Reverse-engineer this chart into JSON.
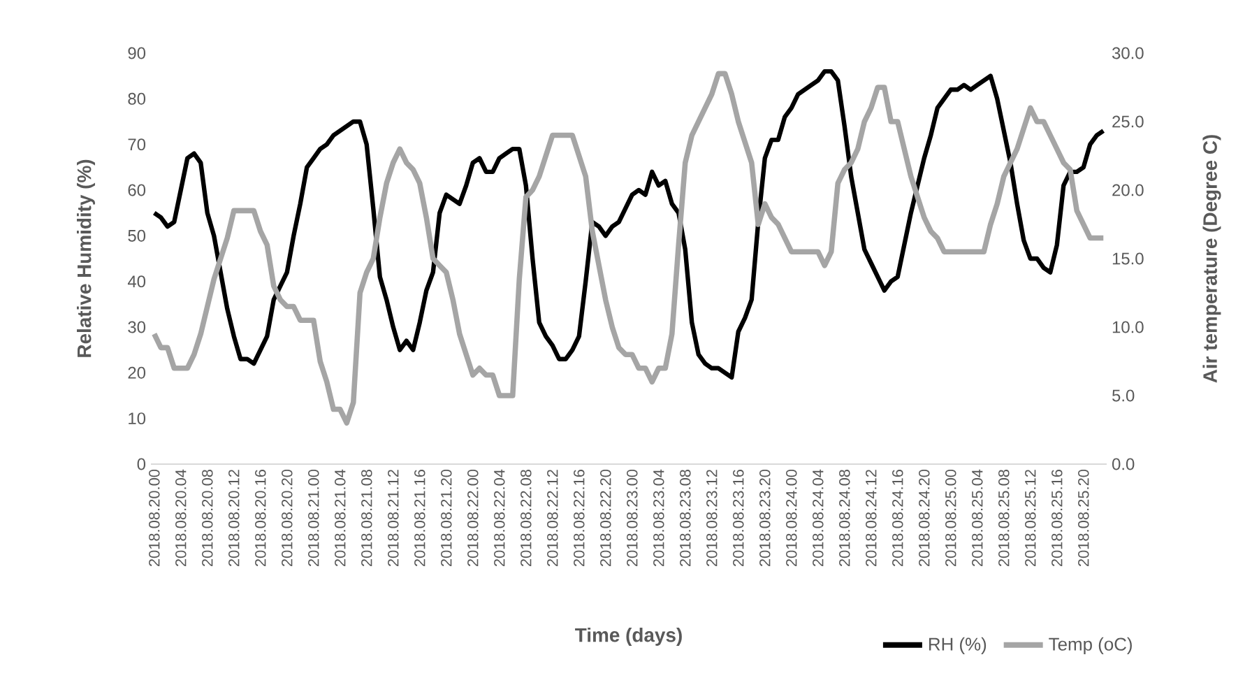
{
  "chart_data": {
    "type": "line",
    "xlabel": "Time (days)",
    "ylabel": "Relative Humidity (%)",
    "y2label": "Air temperature (Degree C)",
    "legend": "bottom right",
    "categories": [
      "2018.08.20.00",
      null,
      null,
      null,
      "2018.08.20.04",
      null,
      null,
      null,
      "2018.08.20.08",
      null,
      null,
      null,
      "2018.08.20.12",
      null,
      null,
      null,
      "2018.08.20.16",
      null,
      null,
      null,
      "2018.08.20.20",
      null,
      null,
      null,
      "2018.08.21.00",
      null,
      null,
      null,
      "2018.08.21.04",
      null,
      null,
      null,
      "2018.08.21.08",
      null,
      null,
      null,
      "2018.08.21.12",
      null,
      null,
      null,
      "2018.08.21.16",
      null,
      null,
      null,
      "2018.08.21.20",
      null,
      null,
      null,
      "2018.08.22.00",
      null,
      null,
      null,
      "2018.08.22.04",
      null,
      null,
      null,
      "2018.08.22.08",
      null,
      null,
      null,
      "2018.08.22.12",
      null,
      null,
      null,
      "2018.08.22.16",
      null,
      null,
      null,
      "2018.08.22.20",
      null,
      null,
      null,
      "2018.08.23.00",
      null,
      null,
      null,
      "2018.08.23.04",
      null,
      null,
      null,
      "2018.08.23.08",
      null,
      null,
      null,
      "2018.08.23.12",
      null,
      null,
      null,
      "2018.08.23.16",
      null,
      null,
      null,
      "2018.08.23.20",
      null,
      null,
      null,
      "2018.08.24.00",
      null,
      null,
      null,
      "2018.08.24.04",
      null,
      null,
      null,
      "2018.08.24.08",
      null,
      null,
      null,
      "2018.08.24.12",
      null,
      null,
      null,
      "2018.08.24.16",
      null,
      null,
      null,
      "2018.08.24.20",
      null,
      null,
      null,
      "2018.08.25.00",
      null,
      null,
      null,
      "2018.08.25.04",
      null,
      null,
      null,
      "2018.08.25.08",
      null,
      null,
      null,
      "2018.08.25.12",
      null,
      null,
      null,
      "2018.08.25.16",
      null,
      null,
      null,
      "2018.08.25.20",
      null,
      null,
      null
    ],
    "ylim": [
      0,
      90
    ],
    "yticks": [
      0,
      10,
      20,
      30,
      40,
      50,
      60,
      70,
      80,
      90
    ],
    "y2lim": [
      0,
      30
    ],
    "y2ticks": [
      {
        "value": 0,
        "label": "0.0"
      },
      {
        "value": 5,
        "label": "5.0"
      },
      {
        "value": 10,
        "label": "10.0"
      },
      {
        "value": 15,
        "label": "15.0"
      },
      {
        "value": 20,
        "label": "20.0"
      },
      {
        "value": 25,
        "label": "25.0"
      },
      {
        "value": 30,
        "label": "30.0"
      }
    ],
    "series": [
      {
        "name": "RH (%)",
        "color": "#000000",
        "axis": "y",
        "values": [
          55,
          54,
          52,
          53,
          60,
          67,
          68,
          66,
          55,
          50,
          42,
          34,
          28,
          23,
          23,
          22,
          25,
          28,
          36,
          39,
          42,
          50,
          57,
          65,
          67,
          69,
          70,
          72,
          73,
          74,
          75,
          75,
          70,
          56,
          41,
          36,
          30,
          25,
          27,
          25,
          31,
          38,
          42,
          55,
          59,
          58,
          57,
          61,
          66,
          67,
          64,
          64,
          67,
          68,
          69,
          69,
          61,
          45,
          31,
          28,
          26,
          23,
          23,
          25,
          28,
          40,
          53,
          52,
          50,
          52,
          53,
          56,
          59,
          60,
          59,
          64,
          61,
          62,
          57,
          55,
          47,
          31,
          24,
          22,
          21,
          21,
          20,
          19,
          29,
          32,
          36,
          53,
          67,
          71,
          71,
          76,
          78,
          81,
          82,
          83,
          84,
          86,
          86,
          84,
          74,
          63,
          55,
          47,
          44,
          41,
          38,
          40,
          41,
          48,
          55,
          61,
          67,
          72,
          78,
          80,
          82,
          82,
          83,
          82,
          83,
          84,
          85,
          80,
          73,
          66,
          57,
          49,
          45,
          45,
          43,
          42,
          48,
          61,
          64,
          64,
          65,
          70,
          72,
          73
        ]
      },
      {
        "name": "Temp (oC)",
        "color": "#a5a5a5",
        "axis": "y2",
        "values": [
          9.5,
          8.5,
          8.5,
          7,
          7,
          7,
          8,
          9.5,
          11.5,
          13.5,
          15,
          16.5,
          18.5,
          18.5,
          18.5,
          18.5,
          17,
          16,
          13,
          12,
          11.5,
          11.5,
          10.5,
          10.5,
          10.5,
          7.5,
          6,
          4,
          4,
          3,
          4.5,
          12.5,
          14,
          15,
          18,
          20.5,
          22,
          23,
          22,
          21.5,
          20.5,
          18,
          15,
          14.5,
          14,
          12,
          9.5,
          8,
          6.5,
          7,
          6.5,
          6.5,
          5,
          5,
          5,
          13.5,
          19.5,
          20,
          21,
          22.5,
          24,
          24,
          24,
          24,
          22.5,
          21,
          17,
          14.5,
          12,
          10,
          8.5,
          8,
          8,
          7,
          7,
          6,
          7,
          7,
          9.5,
          16,
          22,
          24,
          25,
          26,
          27,
          28.5,
          28.5,
          27,
          25,
          23.5,
          22,
          17.5,
          19,
          18,
          17.5,
          16.5,
          15.5,
          15.5,
          15.5,
          15.5,
          15.5,
          14.5,
          15.5,
          20.5,
          21.5,
          22,
          23,
          25,
          26,
          27.5,
          27.5,
          25,
          25,
          23,
          21,
          19.5,
          18,
          17,
          16.5,
          15.5,
          15.5,
          15.5,
          15.5,
          15.5,
          15.5,
          15.5,
          17.5,
          19,
          21,
          22,
          23,
          24.5,
          26,
          25,
          25,
          24,
          23,
          22,
          21.5,
          18.5,
          17.5,
          16.5,
          16.5,
          16.5
        ]
      }
    ]
  }
}
